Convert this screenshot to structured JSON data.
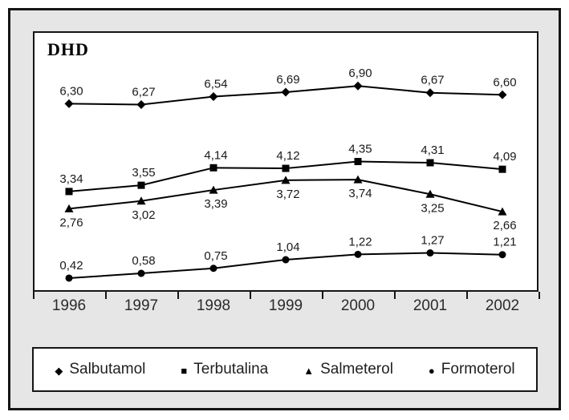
{
  "chart_data": {
    "type": "line",
    "title": "DHD",
    "xlabel": "",
    "ylabel": "",
    "categories": [
      "1996",
      "1997",
      "1998",
      "1999",
      "2000",
      "2001",
      "2002"
    ],
    "series": [
      {
        "name": "Salbutamol",
        "marker": "diamond",
        "label_position": "above",
        "values": [
          6.3,
          6.27,
          6.54,
          6.69,
          6.9,
          6.67,
          6.6
        ],
        "labels": [
          "6,30",
          "6,27",
          "6,54",
          "6,69",
          "6,90",
          "6,67",
          "6,60"
        ]
      },
      {
        "name": "Terbutalina",
        "marker": "square",
        "label_position": "above",
        "values": [
          3.34,
          3.55,
          4.14,
          4.12,
          4.35,
          4.31,
          4.09
        ],
        "labels": [
          "3,34",
          "3,55",
          "4,14",
          "4,12",
          "4,35",
          "4,31",
          "4,09"
        ]
      },
      {
        "name": "Salmeterol",
        "marker": "triangle",
        "label_position": "below",
        "values": [
          2.76,
          3.02,
          3.39,
          3.72,
          3.74,
          3.25,
          2.66
        ],
        "labels": [
          "2,76",
          "3,02",
          "3,39",
          "3,72",
          "3,74",
          "3,25",
          "2,66"
        ]
      },
      {
        "name": "Formoterol",
        "marker": "circle",
        "label_position": "above",
        "values": [
          0.42,
          0.58,
          0.75,
          1.04,
          1.22,
          1.27,
          1.21
        ],
        "labels": [
          "0,42",
          "0,58",
          "0,75",
          "1,04",
          "1,22",
          "1,27",
          "1,21"
        ]
      }
    ],
    "ylim": [
      0,
      8.7
    ],
    "grid": false,
    "legend_position": "bottom",
    "colors": {
      "line": "#000000",
      "marker": "#000000",
      "label_text": "#1a1a1a",
      "panel_bg": "#e6e6e6",
      "chart_bg": "#ffffff",
      "border": "#151515"
    },
    "marker_glyphs": {
      "diamond": "◆",
      "square": "■",
      "triangle": "▲",
      "circle": "●"
    }
  }
}
